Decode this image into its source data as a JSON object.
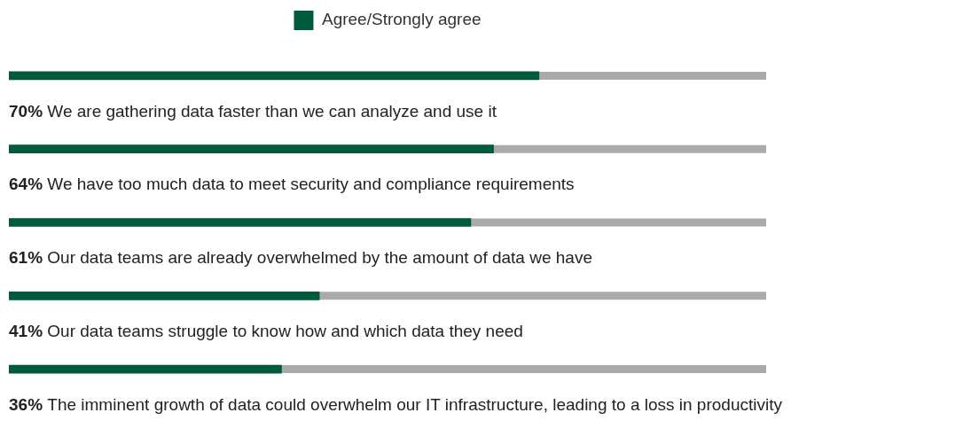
{
  "chart_data": {
    "type": "bar",
    "orientation": "horizontal",
    "legend": "top",
    "categories": [
      "We are gathering data faster than we can analyze and use it",
      "We have too much data to meet security and compliance requirements",
      "Our data teams are already overwhelmed by the amount of data we have",
      "Our data teams struggle to know how and which data they need",
      "The imminent growth of data could overwhelm our IT infrastructure, leading to a loss in productivity"
    ],
    "series": [
      {
        "name": "Agree/Strongly agree",
        "color": "#005a3c",
        "values": [
          70,
          64,
          61,
          41,
          36
        ],
        "value_labels": [
          "70%",
          "64%",
          "61%",
          "41%",
          "36%"
        ]
      }
    ],
    "xlim": [
      0,
      100
    ],
    "tick_labels": false
  }
}
